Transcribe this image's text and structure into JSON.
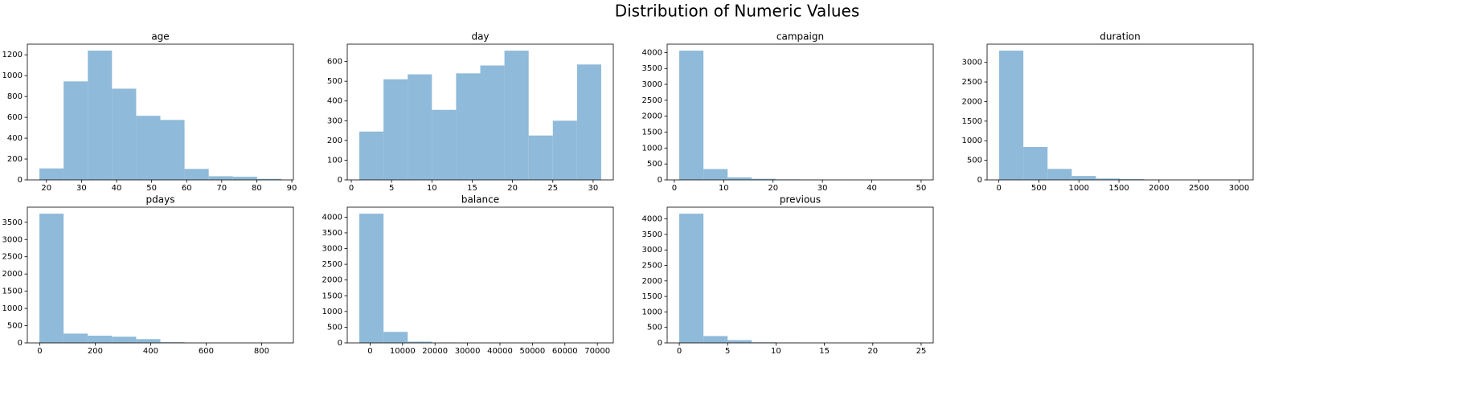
{
  "title": "Distribution of Numeric Values",
  "chart_data": [
    {
      "type": "histogram",
      "title": "age",
      "color": "#8fbad9",
      "bins": [
        18,
        24.9,
        31.8,
        38.7,
        45.6,
        52.5,
        59.4,
        66.3,
        73.2,
        80.1,
        87
      ],
      "counts": [
        110,
        945,
        1240,
        875,
        615,
        575,
        105,
        35,
        30,
        10
      ],
      "xlim": [
        14.55,
        90.45
      ],
      "ylim": [
        0,
        1302
      ],
      "xticks": [
        20,
        30,
        40,
        50,
        60,
        70,
        80,
        90
      ],
      "yticks": [
        0,
        200,
        400,
        600,
        800,
        1000,
        1200
      ]
    },
    {
      "type": "histogram",
      "title": "day",
      "color": "#8fbad9",
      "bins": [
        1,
        4,
        7,
        10,
        13,
        16,
        19,
        22,
        25,
        28,
        31
      ],
      "counts": [
        245,
        510,
        535,
        355,
        540,
        580,
        655,
        225,
        300,
        585
      ],
      "xlim": [
        -0.5,
        32.5
      ],
      "ylim": [
        0,
        688
      ],
      "xticks": [
        0,
        5,
        10,
        15,
        20,
        25,
        30
      ],
      "yticks": [
        0,
        100,
        200,
        300,
        400,
        500,
        600
      ]
    },
    {
      "type": "histogram",
      "title": "campaign",
      "color": "#8fbad9",
      "bins": [
        1,
        5.9,
        10.8,
        15.7,
        20.6,
        25.5,
        30.4,
        35.3,
        40.2,
        45.1,
        50
      ],
      "counts": [
        4060,
        340,
        80,
        35,
        15,
        10,
        5,
        2,
        0,
        3
      ],
      "xlim": [
        -1.45,
        52.45
      ],
      "ylim": [
        0,
        4263
      ],
      "xticks": [
        0,
        10,
        20,
        30,
        40,
        50
      ],
      "yticks": [
        0,
        500,
        1000,
        1500,
        2000,
        2500,
        3000,
        3500,
        4000
      ]
    },
    {
      "type": "histogram",
      "title": "duration",
      "color": "#8fbad9",
      "bins": [
        4,
        306.1,
        608.2,
        910.3,
        1212.4,
        1514.5,
        1816.6,
        2118.7,
        2420.8,
        2722.9,
        3025
      ],
      "counts": [
        3300,
        840,
        280,
        100,
        35,
        20,
        5,
        3,
        0,
        5
      ],
      "xlim": [
        -147,
        3176
      ],
      "ylim": [
        0,
        3465
      ],
      "xticks": [
        0,
        500,
        1000,
        1500,
        2000,
        2500,
        3000
      ],
      "yticks": [
        0,
        500,
        1000,
        1500,
        2000,
        2500,
        3000
      ]
    },
    {
      "type": "histogram",
      "title": "pdays",
      "color": "#8fbad9",
      "bins": [
        -1,
        86.2,
        173.4,
        260.6,
        347.8,
        435,
        522.2,
        609.4,
        696.6,
        783.8,
        871
      ],
      "counts": [
        3750,
        270,
        210,
        180,
        110,
        20,
        5,
        2,
        0,
        1
      ],
      "xlim": [
        -44.6,
        914.6
      ],
      "ylim": [
        0,
        3938
      ],
      "xticks": [
        0,
        200,
        400,
        600,
        800
      ],
      "yticks": [
        0,
        500,
        1000,
        1500,
        2000,
        2500,
        3000,
        3500
      ]
    },
    {
      "type": "histogram",
      "title": "balance",
      "color": "#8fbad9",
      "bins": [
        -3313,
        4137.1,
        11587.2,
        19037.3,
        26487.4,
        33937.5,
        41387.6,
        48837.7,
        56287.8,
        63737.9,
        71188
      ],
      "counts": [
        4110,
        350,
        40,
        10,
        5,
        2,
        1,
        0,
        0,
        2
      ],
      "xlim": [
        -7038,
        74913
      ],
      "ylim": [
        0,
        4316
      ],
      "xticks": [
        0,
        10000,
        20000,
        30000,
        40000,
        50000,
        60000,
        70000
      ],
      "yticks": [
        0,
        500,
        1000,
        1500,
        2000,
        2500,
        3000,
        3500,
        4000
      ]
    },
    {
      "type": "histogram",
      "title": "previous",
      "color": "#8fbad9",
      "bins": [
        0,
        2.5,
        5,
        7.5,
        10,
        12.5,
        15,
        17.5,
        20,
        22.5,
        25
      ],
      "counts": [
        4170,
        220,
        90,
        20,
        10,
        3,
        0,
        0,
        0,
        1
      ],
      "xlim": [
        -1.25,
        26.25
      ],
      "ylim": [
        0,
        4379
      ],
      "xticks": [
        0,
        5,
        10,
        15,
        20,
        25
      ],
      "yticks": [
        0,
        500,
        1000,
        1500,
        2000,
        2500,
        3000,
        3500,
        4000
      ]
    }
  ]
}
